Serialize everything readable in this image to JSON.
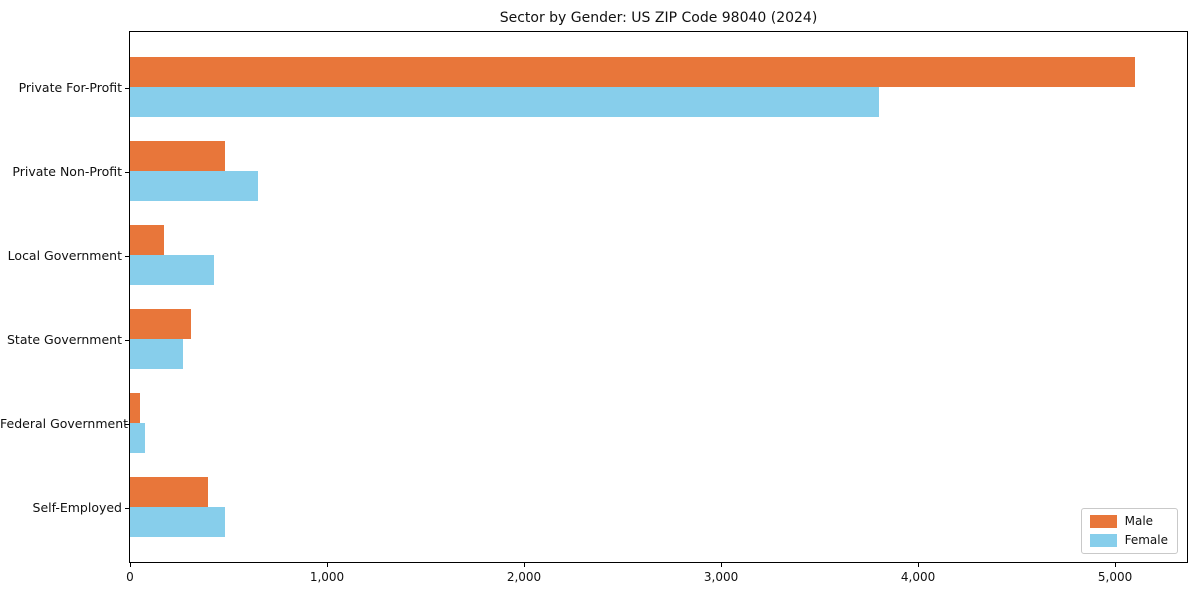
{
  "chart_data": {
    "type": "bar",
    "orientation": "horizontal",
    "title": "Sector by Gender: US ZIP Code 98040 (2024)",
    "categories": [
      "Private For-Profit",
      "Private Non-Profit",
      "Local Government",
      "State Government",
      "Federal Government",
      "Self-Employed"
    ],
    "series": [
      {
        "name": "Male",
        "color": "#e8763a",
        "values": [
          5100,
          480,
          170,
          310,
          50,
          395
        ]
      },
      {
        "name": "Female",
        "color": "#87ceeb",
        "values": [
          3800,
          650,
          425,
          270,
          75,
          480
        ]
      }
    ],
    "xlabel": "",
    "ylabel": "",
    "xlim": [
      0,
      5365
    ],
    "x_ticks": [
      0,
      1000,
      2000,
      3000,
      4000,
      5000
    ],
    "x_tick_labels": [
      "0",
      "1,000",
      "2,000",
      "3,000",
      "4,000",
      "5,000"
    ],
    "grid": false,
    "legend_position": "lower right",
    "axis_color": "#000000",
    "background_color": "#ffffff"
  }
}
